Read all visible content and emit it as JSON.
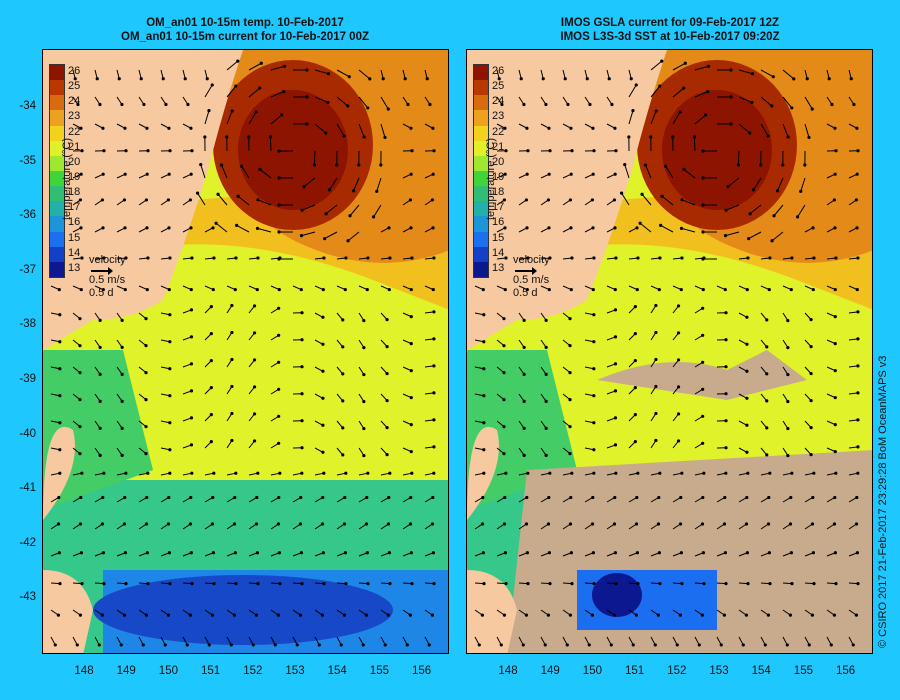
{
  "left_panel": {
    "title_line1": "OM_an01 10-15m temp. 10-Feb-2017",
    "title_line2": "OM_an01 10-15m current for 10-Feb-2017 00Z"
  },
  "right_panel": {
    "title_line1": "IMOS GSLA current for 09-Feb-2017 12Z",
    "title_line2": "IMOS L3S-3d SST at 10-Feb-2017 09:20Z"
  },
  "colorbar": {
    "label": "temperature (°C)",
    "ticks": [
      "26",
      "25",
      "24",
      "23",
      "22",
      "21",
      "20",
      "19",
      "18",
      "17",
      "16",
      "15",
      "14",
      "13"
    ],
    "colors": [
      "#8c1400",
      "#b83800",
      "#d86a10",
      "#eea020",
      "#f2d21c",
      "#e0f02a",
      "#9ee830",
      "#3ed43a",
      "#30be74",
      "#22b0a8",
      "#1c96d8",
      "#1a70f0",
      "#1440c8",
      "#0c1890"
    ]
  },
  "velocity_key": {
    "label": "velocity",
    "speed": "0.5 m/s",
    "duration": "0.5 d"
  },
  "lat_labels": [
    "-34",
    "-35",
    "-36",
    "-37",
    "-38",
    "-39",
    "-40",
    "-41",
    "-42",
    "-43"
  ],
  "lon_labels": [
    "148",
    "149",
    "150",
    "151",
    "152",
    "153",
    "154",
    "155",
    "156"
  ],
  "land_color": "#f7c9a0",
  "cloud_color": "#c8ab8c",
  "credit": "© CSIRO 2017   21-Feb-2017 23:29:28 BoM OceanMAPS v3"
}
